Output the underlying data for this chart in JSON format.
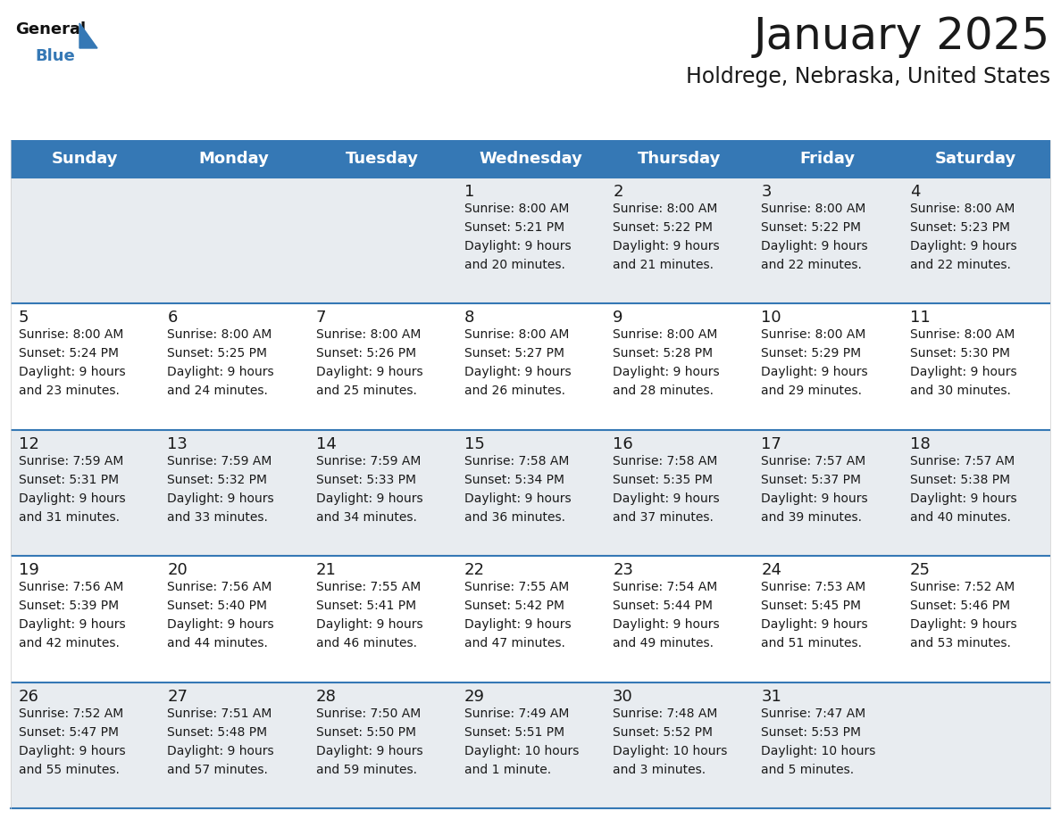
{
  "title": "January 2025",
  "subtitle": "Holdrege, Nebraska, United States",
  "header_bg_color": "#3578b5",
  "header_text_color": "#ffffff",
  "cell_bg_grey": "#e8ecf0",
  "cell_bg_white": "#ffffff",
  "separator_color": "#3578b5",
  "text_color": "#1a1a1a",
  "day_headers": [
    "Sunday",
    "Monday",
    "Tuesday",
    "Wednesday",
    "Thursday",
    "Friday",
    "Saturday"
  ],
  "days": [
    {
      "day": null,
      "sunrise": null,
      "sunset": null,
      "daylight": null
    },
    {
      "day": null,
      "sunrise": null,
      "sunset": null,
      "daylight": null
    },
    {
      "day": null,
      "sunrise": null,
      "sunset": null,
      "daylight": null
    },
    {
      "day": 1,
      "sunrise": "8:00 AM",
      "sunset": "5:21 PM",
      "daylight": "9 hours\nand 20 minutes."
    },
    {
      "day": 2,
      "sunrise": "8:00 AM",
      "sunset": "5:22 PM",
      "daylight": "9 hours\nand 21 minutes."
    },
    {
      "day": 3,
      "sunrise": "8:00 AM",
      "sunset": "5:22 PM",
      "daylight": "9 hours\nand 22 minutes."
    },
    {
      "day": 4,
      "sunrise": "8:00 AM",
      "sunset": "5:23 PM",
      "daylight": "9 hours\nand 22 minutes."
    },
    {
      "day": 5,
      "sunrise": "8:00 AM",
      "sunset": "5:24 PM",
      "daylight": "9 hours\nand 23 minutes."
    },
    {
      "day": 6,
      "sunrise": "8:00 AM",
      "sunset": "5:25 PM",
      "daylight": "9 hours\nand 24 minutes."
    },
    {
      "day": 7,
      "sunrise": "8:00 AM",
      "sunset": "5:26 PM",
      "daylight": "9 hours\nand 25 minutes."
    },
    {
      "day": 8,
      "sunrise": "8:00 AM",
      "sunset": "5:27 PM",
      "daylight": "9 hours\nand 26 minutes."
    },
    {
      "day": 9,
      "sunrise": "8:00 AM",
      "sunset": "5:28 PM",
      "daylight": "9 hours\nand 28 minutes."
    },
    {
      "day": 10,
      "sunrise": "8:00 AM",
      "sunset": "5:29 PM",
      "daylight": "9 hours\nand 29 minutes."
    },
    {
      "day": 11,
      "sunrise": "8:00 AM",
      "sunset": "5:30 PM",
      "daylight": "9 hours\nand 30 minutes."
    },
    {
      "day": 12,
      "sunrise": "7:59 AM",
      "sunset": "5:31 PM",
      "daylight": "9 hours\nand 31 minutes."
    },
    {
      "day": 13,
      "sunrise": "7:59 AM",
      "sunset": "5:32 PM",
      "daylight": "9 hours\nand 33 minutes."
    },
    {
      "day": 14,
      "sunrise": "7:59 AM",
      "sunset": "5:33 PM",
      "daylight": "9 hours\nand 34 minutes."
    },
    {
      "day": 15,
      "sunrise": "7:58 AM",
      "sunset": "5:34 PM",
      "daylight": "9 hours\nand 36 minutes."
    },
    {
      "day": 16,
      "sunrise": "7:58 AM",
      "sunset": "5:35 PM",
      "daylight": "9 hours\nand 37 minutes."
    },
    {
      "day": 17,
      "sunrise": "7:57 AM",
      "sunset": "5:37 PM",
      "daylight": "9 hours\nand 39 minutes."
    },
    {
      "day": 18,
      "sunrise": "7:57 AM",
      "sunset": "5:38 PM",
      "daylight": "9 hours\nand 40 minutes."
    },
    {
      "day": 19,
      "sunrise": "7:56 AM",
      "sunset": "5:39 PM",
      "daylight": "9 hours\nand 42 minutes."
    },
    {
      "day": 20,
      "sunrise": "7:56 AM",
      "sunset": "5:40 PM",
      "daylight": "9 hours\nand 44 minutes."
    },
    {
      "day": 21,
      "sunrise": "7:55 AM",
      "sunset": "5:41 PM",
      "daylight": "9 hours\nand 46 minutes."
    },
    {
      "day": 22,
      "sunrise": "7:55 AM",
      "sunset": "5:42 PM",
      "daylight": "9 hours\nand 47 minutes."
    },
    {
      "day": 23,
      "sunrise": "7:54 AM",
      "sunset": "5:44 PM",
      "daylight": "9 hours\nand 49 minutes."
    },
    {
      "day": 24,
      "sunrise": "7:53 AM",
      "sunset": "5:45 PM",
      "daylight": "9 hours\nand 51 minutes."
    },
    {
      "day": 25,
      "sunrise": "7:52 AM",
      "sunset": "5:46 PM",
      "daylight": "9 hours\nand 53 minutes."
    },
    {
      "day": 26,
      "sunrise": "7:52 AM",
      "sunset": "5:47 PM",
      "daylight": "9 hours\nand 55 minutes."
    },
    {
      "day": 27,
      "sunrise": "7:51 AM",
      "sunset": "5:48 PM",
      "daylight": "9 hours\nand 57 minutes."
    },
    {
      "day": 28,
      "sunrise": "7:50 AM",
      "sunset": "5:50 PM",
      "daylight": "9 hours\nand 59 minutes."
    },
    {
      "day": 29,
      "sunrise": "7:49 AM",
      "sunset": "5:51 PM",
      "daylight": "10 hours\nand 1 minute."
    },
    {
      "day": 30,
      "sunrise": "7:48 AM",
      "sunset": "5:52 PM",
      "daylight": "10 hours\nand 3 minutes."
    },
    {
      "day": 31,
      "sunrise": "7:47 AM",
      "sunset": "5:53 PM",
      "daylight": "10 hours\nand 5 minutes."
    },
    {
      "day": null,
      "sunrise": null,
      "sunset": null,
      "daylight": null
    }
  ],
  "num_cols": 7,
  "num_rows": 5,
  "fig_width": 11.88,
  "fig_height": 9.18,
  "title_fontsize": 36,
  "subtitle_fontsize": 17,
  "header_fontsize": 13,
  "day_num_fontsize": 13,
  "cell_text_fontsize": 10
}
